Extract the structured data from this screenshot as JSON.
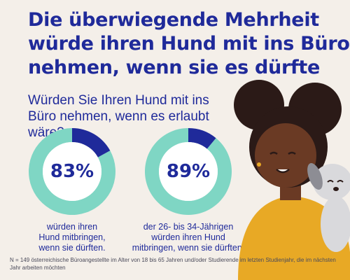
{
  "title": "Die überwiegende Mehrheit würde ihren Hund mit ins Büro nehmen, wenn sie es dürfte",
  "question": "Würden Sie Ihren Hund mit ins Büro nehmen, wenn es erlaubt wäre?",
  "colors": {
    "background": "#f4efe9",
    "headline": "#1f2a9a",
    "donut_fill": "#1f2a9a",
    "donut_rest": "#7fd6c4",
    "hair": "#2b1a17",
    "skin": "#6a3a24",
    "sweater": "#e8a925",
    "dog": "#d9d9dc"
  },
  "chart_data": [
    {
      "type": "pie",
      "variant": "donut",
      "value": 83,
      "unit": "%",
      "label": "83%",
      "caption": "würden ihren\nHund mitbringen,\nwenn sie dürften."
    },
    {
      "type": "pie",
      "variant": "donut",
      "value": 89,
      "unit": "%",
      "label": "89%",
      "caption": "der 26- bis 34-Jährigen\nwürden ihren Hund\nmitbringen, wenn sie dürften."
    }
  ],
  "footnote": "N = 149 österreichische Büroangestellte im Alter von 18 bis 65 Jahren und/oder Studierende im letzten Studienjahr, die im nächsten Jahr arbeiten möchten"
}
